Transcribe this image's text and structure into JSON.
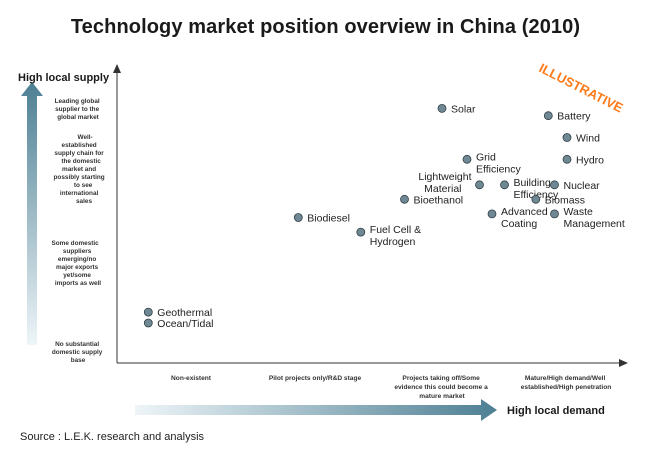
{
  "page": {
    "source": "Source : L.E.K. research and analysis",
    "stamp": "ILLUSTRATIVE"
  },
  "colors": {
    "point_fill": "#6f8894",
    "arrow_dark": "#4d7f93",
    "arrow_light": "#e9f2f6",
    "stamp": "#ff7a1a"
  },
  "chart_data": {
    "type": "scatter",
    "title": "Technology market position overview in China (2010)",
    "xlabel": "High local demand",
    "ylabel": "High local supply",
    "x_categories": [
      "Non-existent",
      "Pilot projects only/R&D stage",
      "Projects taking off/Some evidence this could become a mature market",
      "Mature/High demand/Well established/High penetration"
    ],
    "y_categories": [
      "No substantial domestic supply base",
      "Some domestic suppliers emerging/no major exports yet/some imports as well",
      "Well-established supply chain for the domestic market and possibly starting to see international sales",
      "Leading global supplier to the global market"
    ],
    "x_range": [
      0.5,
      4.5
    ],
    "y_range": [
      0.5,
      4.5
    ],
    "grid": false,
    "legend": "none",
    "points": [
      {
        "label": "Solar",
        "x": 3.1,
        "y": 4.0
      },
      {
        "label": "Battery",
        "x": 3.95,
        "y": 3.9
      },
      {
        "label": "Wind",
        "x": 4.1,
        "y": 3.6
      },
      {
        "label": "Grid Efficiency",
        "x": 3.3,
        "y": 3.3
      },
      {
        "label": "Hydro",
        "x": 4.1,
        "y": 3.3
      },
      {
        "label": "Lightweight Material",
        "x": 3.4,
        "y": 2.95
      },
      {
        "label": "Building Efficiency",
        "x": 3.6,
        "y": 2.95
      },
      {
        "label": "Nuclear",
        "x": 4.0,
        "y": 2.95
      },
      {
        "label": "Bioethanol",
        "x": 2.8,
        "y": 2.75
      },
      {
        "label": "Biomass",
        "x": 3.85,
        "y": 2.75
      },
      {
        "label": "Advanced Coating",
        "x": 3.5,
        "y": 2.55
      },
      {
        "label": "Waste Management",
        "x": 4.0,
        "y": 2.55
      },
      {
        "label": "Biodiesel",
        "x": 1.95,
        "y": 2.5
      },
      {
        "label": "Fuel Cell & Hydrogen",
        "x": 2.45,
        "y": 2.3
      },
      {
        "label": "Geothermal",
        "x": 0.75,
        "y": 1.2
      },
      {
        "label": "Ocean/Tidal",
        "x": 0.75,
        "y": 1.05
      }
    ]
  }
}
